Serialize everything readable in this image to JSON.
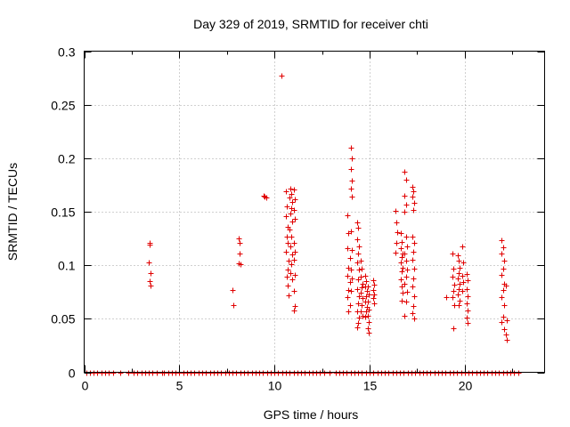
{
  "chart_data": {
    "type": "scatter",
    "title": "Day 329 of 2019, SRMTID for receiver chti",
    "xlabel": "GPS time / hours",
    "ylabel": "SRMTID / TECUs",
    "xlim": [
      0,
      24.2
    ],
    "ylim": [
      0,
      0.3
    ],
    "xticks": [
      0,
      5,
      10,
      15,
      20
    ],
    "yticks": [
      0,
      0.05,
      0.1,
      0.15,
      0.2,
      0.25,
      0.3
    ],
    "xtick_labels": [
      "0",
      "5",
      "10",
      "15",
      "20"
    ],
    "ytick_labels": [
      "0",
      "0.05",
      "0.1",
      "0.15",
      "0.2",
      "0.25",
      "0.3"
    ],
    "grid": true,
    "marker": "+",
    "marker_color": "#e00000",
    "series": [
      {
        "name": "SRMTID",
        "points": [
          [
            3.45,
            0.121
          ],
          [
            3.45,
            0.119
          ],
          [
            3.4,
            0.103
          ],
          [
            3.5,
            0.093
          ],
          [
            3.45,
            0.085
          ],
          [
            3.5,
            0.081
          ],
          [
            7.8,
            0.077
          ],
          [
            7.85,
            0.063
          ],
          [
            8.1,
            0.125
          ],
          [
            8.15,
            0.121
          ],
          [
            8.15,
            0.111
          ],
          [
            8.1,
            0.102
          ],
          [
            8.2,
            0.101
          ],
          [
            9.45,
            0.165
          ],
          [
            9.5,
            0.164
          ],
          [
            9.55,
            0.163
          ],
          [
            10.35,
            0.277
          ],
          [
            10.6,
            0.169
          ],
          [
            10.65,
            0.155
          ],
          [
            10.6,
            0.146
          ],
          [
            10.7,
            0.136
          ],
          [
            10.65,
            0.127
          ],
          [
            10.7,
            0.121
          ],
          [
            10.6,
            0.113
          ],
          [
            10.75,
            0.104
          ],
          [
            10.7,
            0.096
          ],
          [
            10.65,
            0.089
          ],
          [
            10.7,
            0.081
          ],
          [
            10.75,
            0.072
          ],
          [
            10.85,
            0.172
          ],
          [
            10.9,
            0.167
          ],
          [
            10.8,
            0.163
          ],
          [
            10.95,
            0.159
          ],
          [
            10.9,
            0.153
          ],
          [
            10.85,
            0.148
          ],
          [
            10.95,
            0.141
          ],
          [
            10.8,
            0.133
          ],
          [
            10.9,
            0.127
          ],
          [
            10.85,
            0.118
          ],
          [
            10.95,
            0.11
          ],
          [
            10.9,
            0.101
          ],
          [
            10.85,
            0.093
          ],
          [
            10.95,
            0.087
          ],
          [
            11.0,
            0.171
          ],
          [
            11.05,
            0.162
          ],
          [
            11.0,
            0.152
          ],
          [
            11.05,
            0.143
          ],
          [
            11.0,
            0.121
          ],
          [
            11.05,
            0.113
          ],
          [
            11.0,
            0.105
          ],
          [
            11.05,
            0.091
          ],
          [
            11.0,
            0.076
          ],
          [
            11.05,
            0.062
          ],
          [
            11.0,
            0.058
          ],
          [
            13.85,
            0.147
          ],
          [
            13.9,
            0.13
          ],
          [
            13.85,
            0.116
          ],
          [
            13.95,
            0.107
          ],
          [
            13.9,
            0.098
          ],
          [
            13.85,
            0.09
          ],
          [
            13.95,
            0.084
          ],
          [
            13.9,
            0.077
          ],
          [
            13.85,
            0.07
          ],
          [
            13.95,
            0.063
          ],
          [
            13.9,
            0.057
          ],
          [
            14.0,
            0.21
          ],
          [
            14.05,
            0.2
          ],
          [
            14.0,
            0.19
          ],
          [
            14.05,
            0.179
          ],
          [
            14.0,
            0.172
          ],
          [
            14.05,
            0.164
          ],
          [
            14.0,
            0.132
          ],
          [
            14.05,
            0.114
          ],
          [
            14.0,
            0.096
          ],
          [
            14.05,
            0.088
          ],
          [
            14.0,
            0.076
          ],
          [
            14.35,
            0.14
          ],
          [
            14.4,
            0.135
          ],
          [
            14.35,
            0.124
          ],
          [
            14.45,
            0.118
          ],
          [
            14.4,
            0.111
          ],
          [
            14.35,
            0.103
          ],
          [
            14.45,
            0.096
          ],
          [
            14.4,
            0.087
          ],
          [
            14.35,
            0.078
          ],
          [
            14.45,
            0.071
          ],
          [
            14.4,
            0.064
          ],
          [
            14.35,
            0.057
          ],
          [
            14.45,
            0.051
          ],
          [
            14.4,
            0.046
          ],
          [
            14.35,
            0.042
          ],
          [
            14.55,
            0.104
          ],
          [
            14.6,
            0.097
          ],
          [
            14.55,
            0.089
          ],
          [
            14.65,
            0.083
          ],
          [
            14.6,
            0.079
          ],
          [
            14.55,
            0.074
          ],
          [
            14.65,
            0.069
          ],
          [
            14.6,
            0.063
          ],
          [
            14.55,
            0.057
          ],
          [
            14.65,
            0.053
          ],
          [
            14.75,
            0.09
          ],
          [
            14.8,
            0.085
          ],
          [
            14.75,
            0.08
          ],
          [
            14.85,
            0.076
          ],
          [
            14.8,
            0.071
          ],
          [
            14.75,
            0.066
          ],
          [
            14.85,
            0.061
          ],
          [
            14.8,
            0.057
          ],
          [
            14.75,
            0.052
          ],
          [
            14.9,
            0.08
          ],
          [
            14.95,
            0.073
          ],
          [
            14.9,
            0.066
          ],
          [
            14.95,
            0.059
          ],
          [
            14.9,
            0.053
          ],
          [
            14.95,
            0.047
          ],
          [
            14.9,
            0.041
          ],
          [
            14.95,
            0.037
          ],
          [
            15.2,
            0.086
          ],
          [
            15.25,
            0.082
          ],
          [
            15.2,
            0.077
          ],
          [
            15.25,
            0.073
          ],
          [
            15.2,
            0.069
          ],
          [
            15.25,
            0.064
          ],
          [
            16.35,
            0.151
          ],
          [
            16.4,
            0.14
          ],
          [
            16.45,
            0.131
          ],
          [
            16.4,
            0.121
          ],
          [
            16.35,
            0.112
          ],
          [
            16.65,
            0.13
          ],
          [
            16.7,
            0.122
          ],
          [
            16.65,
            0.116
          ],
          [
            16.75,
            0.111
          ],
          [
            16.7,
            0.108
          ],
          [
            16.65,
            0.103
          ],
          [
            16.75,
            0.098
          ],
          [
            16.7,
            0.094
          ],
          [
            16.65,
            0.087
          ],
          [
            16.7,
            0.08
          ],
          [
            16.75,
            0.074
          ],
          [
            16.7,
            0.067
          ],
          [
            16.85,
            0.187
          ],
          [
            16.9,
            0.18
          ],
          [
            16.85,
            0.165
          ],
          [
            16.9,
            0.157
          ],
          [
            16.85,
            0.15
          ],
          [
            16.9,
            0.127
          ],
          [
            16.95,
            0.118
          ],
          [
            16.85,
            0.111
          ],
          [
            16.9,
            0.104
          ],
          [
            16.95,
            0.096
          ],
          [
            16.9,
            0.089
          ],
          [
            16.85,
            0.083
          ],
          [
            16.95,
            0.075
          ],
          [
            16.9,
            0.066
          ],
          [
            16.85,
            0.053
          ],
          [
            17.25,
            0.173
          ],
          [
            17.3,
            0.169
          ],
          [
            17.25,
            0.164
          ],
          [
            17.35,
            0.158
          ],
          [
            17.3,
            0.152
          ],
          [
            17.25,
            0.127
          ],
          [
            17.35,
            0.121
          ],
          [
            17.3,
            0.113
          ],
          [
            17.25,
            0.105
          ],
          [
            17.35,
            0.097
          ],
          [
            17.3,
            0.088
          ],
          [
            17.25,
            0.08
          ],
          [
            17.35,
            0.071
          ],
          [
            17.3,
            0.062
          ],
          [
            17.25,
            0.055
          ],
          [
            17.35,
            0.05
          ],
          [
            19.05,
            0.07
          ],
          [
            19.35,
            0.111
          ],
          [
            19.4,
            0.097
          ],
          [
            19.35,
            0.089
          ],
          [
            19.45,
            0.082
          ],
          [
            19.4,
            0.076
          ],
          [
            19.35,
            0.07
          ],
          [
            19.45,
            0.063
          ],
          [
            19.4,
            0.041
          ],
          [
            19.65,
            0.109
          ],
          [
            19.7,
            0.104
          ],
          [
            19.75,
            0.098
          ],
          [
            19.7,
            0.093
          ],
          [
            19.65,
            0.088
          ],
          [
            19.75,
            0.083
          ],
          [
            19.7,
            0.078
          ],
          [
            19.65,
            0.073
          ],
          [
            19.75,
            0.067
          ],
          [
            19.7,
            0.063
          ],
          [
            19.85,
            0.118
          ],
          [
            19.9,
            0.103
          ],
          [
            19.85,
            0.09
          ],
          [
            19.9,
            0.084
          ],
          [
            19.85,
            0.076
          ],
          [
            20.1,
            0.092
          ],
          [
            20.15,
            0.086
          ],
          [
            20.1,
            0.078
          ],
          [
            20.15,
            0.071
          ],
          [
            20.1,
            0.064
          ],
          [
            20.15,
            0.058
          ],
          [
            20.1,
            0.051
          ],
          [
            20.15,
            0.046
          ],
          [
            21.95,
            0.123
          ],
          [
            22.0,
            0.117
          ],
          [
            21.95,
            0.111
          ],
          [
            22.05,
            0.104
          ],
          [
            22.0,
            0.097
          ],
          [
            21.95,
            0.091
          ],
          [
            22.05,
            0.083
          ],
          [
            22.0,
            0.077
          ],
          [
            21.95,
            0.07
          ],
          [
            22.05,
            0.063
          ],
          [
            22.0,
            0.052
          ],
          [
            21.95,
            0.047
          ],
          [
            22.05,
            0.04
          ],
          [
            22.15,
            0.081
          ],
          [
            22.2,
            0.049
          ],
          [
            22.15,
            0.035
          ],
          [
            22.2,
            0.03
          ]
        ]
      }
    ],
    "zero_line_x": [
      0.1,
      0.3,
      0.5,
      0.7,
      0.9,
      1.1,
      1.3,
      1.5,
      1.9,
      2.3,
      2.6,
      2.8,
      3.0,
      3.2,
      3.4,
      3.6,
      3.8,
      4.1,
      4.2,
      4.4,
      4.6,
      4.8,
      5.0,
      5.2,
      5.4,
      5.6,
      5.8,
      6.0,
      6.2,
      6.4,
      6.6,
      6.8,
      7.0,
      7.2,
      7.4,
      7.6,
      7.8,
      8.0,
      8.2,
      8.4,
      8.6,
      8.8,
      9.0,
      9.2,
      9.4,
      9.6,
      9.8,
      10.0,
      10.2,
      10.4,
      10.6,
      10.8,
      11.0,
      11.2,
      11.4,
      11.6,
      11.8,
      12.0,
      12.2,
      12.4,
      12.6,
      12.9,
      13.2,
      13.4,
      13.6,
      13.8,
      14.0,
      14.2,
      14.4,
      14.6,
      14.8,
      15.0,
      15.2,
      15.4,
      15.6,
      15.8,
      16.0,
      16.2,
      16.4,
      16.6,
      16.8,
      17.0,
      17.2,
      17.4,
      17.6,
      17.8,
      18.0,
      18.2,
      18.4,
      18.6,
      18.8,
      19.0,
      19.2,
      19.4,
      19.6,
      19.8,
      20.0,
      20.2,
      20.4,
      20.6,
      20.8,
      21.0,
      21.2,
      21.4,
      21.6,
      21.8,
      22.0,
      22.2,
      22.4,
      22.6,
      22.8
    ]
  }
}
